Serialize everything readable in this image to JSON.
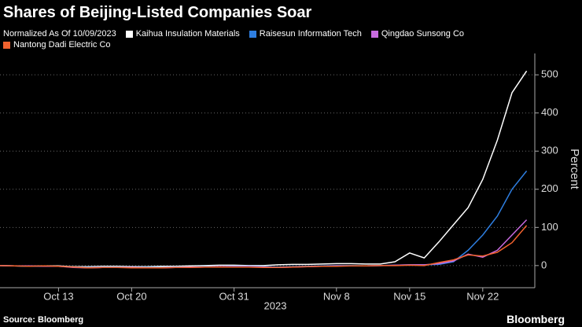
{
  "chart_data": {
    "type": "line",
    "title": "Shares of Beijing-Listed Companies Soar",
    "subtitle": "Normalized As Of 10/09/2023",
    "source": "Source: Bloomberg",
    "brand": "Bloomberg",
    "y_label": "Percent",
    "x_group_label": "2023",
    "categories": [
      null,
      null,
      null,
      null,
      "Oct 13",
      null,
      null,
      null,
      null,
      "Oct 20",
      null,
      null,
      null,
      null,
      null,
      null,
      "Oct 31",
      null,
      null,
      null,
      null,
      null,
      null,
      "Nov 8",
      null,
      null,
      null,
      null,
      "Nov 15",
      null,
      null,
      null,
      null,
      "Nov 22",
      null,
      null,
      null
    ],
    "series": [
      {
        "name": "Kaihua Insulation Materials",
        "color": "#ffffff",
        "values": [
          0,
          -1,
          -2,
          -1,
          -1,
          -3,
          -3,
          -2,
          -2,
          -3,
          -3,
          -2,
          -2,
          -1,
          0,
          1,
          1,
          0,
          0,
          2,
          3,
          3,
          4,
          5,
          5,
          4,
          4,
          10,
          33,
          20,
          62,
          107,
          152,
          226,
          329,
          453,
          510
        ]
      },
      {
        "name": "Raisesun Information Tech",
        "color": "#2e7ee0",
        "values": [
          0,
          -1,
          -2,
          -2,
          -2,
          -4,
          -5,
          -4,
          -4,
          -5,
          -5,
          -5,
          -4,
          -4,
          -3,
          -3,
          -2,
          -2,
          -3,
          -4,
          -3,
          -2,
          -1,
          0,
          0,
          -1,
          0,
          1,
          2,
          2,
          3,
          10,
          40,
          80,
          130,
          200,
          248
        ]
      },
      {
        "name": "Qingdao Sunsong Co",
        "color": "#c86be0",
        "values": [
          0,
          -1,
          -1,
          -2,
          -2,
          -5,
          -6,
          -5,
          -5,
          -5,
          -6,
          -6,
          -5,
          -4,
          -4,
          -3,
          -3,
          -3,
          -4,
          -5,
          -4,
          -3,
          -2,
          -1,
          -1,
          -1,
          0,
          1,
          2,
          2,
          5,
          12,
          30,
          22,
          40,
          80,
          120
        ]
      },
      {
        "name": "Nantong Dadi Electric Co",
        "color": "#f2622e",
        "values": [
          0,
          -1,
          -2,
          -1,
          -2,
          -4,
          -6,
          -5,
          -5,
          -6,
          -6,
          -6,
          -5,
          -5,
          -4,
          -4,
          -4,
          -4,
          -5,
          -5,
          -4,
          -3,
          -2,
          -2,
          -1,
          -1,
          0,
          0,
          1,
          0,
          8,
          15,
          28,
          25,
          35,
          60,
          105
        ]
      }
    ],
    "ylim": [
      -58,
      556
    ],
    "yticks": [
      0,
      100,
      200,
      300,
      400,
      500
    ],
    "grid": true
  }
}
